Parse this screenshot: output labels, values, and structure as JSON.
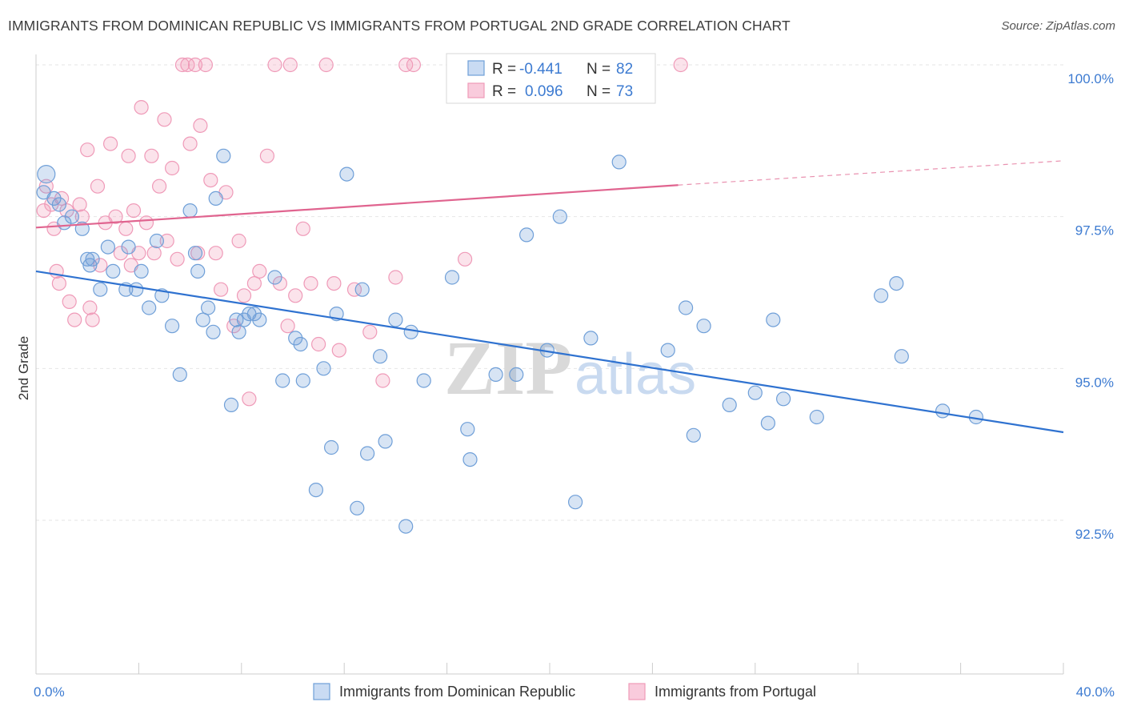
{
  "header": {
    "title": "IMMIGRANTS FROM DOMINICAN REPUBLIC VS IMMIGRANTS FROM PORTUGAL 2ND GRADE CORRELATION CHART",
    "source": "Source: ZipAtlas.com"
  },
  "watermark": {
    "zip": "ZIP",
    "atlas": "atlas"
  },
  "legend": {
    "blue": {
      "r_label": "R =",
      "r_value": "-0.441",
      "n_label": "N =",
      "n_value": "82"
    },
    "pink": {
      "r_label": "R =",
      "r_value": "0.096",
      "n_label": "N =",
      "n_value": "73"
    }
  },
  "chart_data": {
    "type": "scatter",
    "title": "IMMIGRANTS FROM DOMINICAN REPUBLIC VS IMMIGRANTS FROM PORTUGAL 2ND GRADE CORRELATION CHART",
    "xlabel": "",
    "ylabel": "2nd Grade",
    "xlim": [
      0,
      40
    ],
    "ylim": [
      90.0,
      100.5
    ],
    "x_tick_labels": [
      "0.0%",
      "40.0%"
    ],
    "y_tick_labels": [
      "100.0%",
      "97.5%",
      "95.0%",
      "92.5%"
    ],
    "y_tick_values": [
      100.0,
      97.5,
      95.0,
      92.5
    ],
    "grid": true,
    "legend_position": "top-center",
    "colors": {
      "blue": "#6f9fd8",
      "pink": "#ef9ab8",
      "blue_line": "#2f72d0",
      "pink_line": "#e0648f"
    },
    "series": [
      {
        "name": "Immigrants from Dominican Republic",
        "color": "blue",
        "trend": {
          "x0": 0.0,
          "y0": 96.6,
          "x1": 40.0,
          "y1": 93.95
        },
        "points": [
          [
            0.4,
            98.2
          ],
          [
            0.7,
            97.8
          ],
          [
            0.9,
            97.7
          ],
          [
            1.4,
            97.5
          ],
          [
            1.8,
            97.3
          ],
          [
            2.0,
            96.8
          ],
          [
            2.2,
            96.8
          ],
          [
            2.5,
            96.3
          ],
          [
            2.8,
            97.0
          ],
          [
            3.0,
            96.6
          ],
          [
            3.5,
            96.3
          ],
          [
            3.6,
            97.0
          ],
          [
            3.9,
            96.3
          ],
          [
            4.1,
            96.6
          ],
          [
            4.4,
            96.0
          ],
          [
            4.7,
            97.1
          ],
          [
            4.9,
            96.2
          ],
          [
            5.3,
            95.7
          ],
          [
            5.6,
            94.9
          ],
          [
            6.0,
            97.6
          ],
          [
            6.2,
            96.9
          ],
          [
            6.3,
            96.6
          ],
          [
            6.5,
            95.8
          ],
          [
            6.7,
            96.0
          ],
          [
            6.9,
            95.6
          ],
          [
            7.0,
            97.8
          ],
          [
            7.3,
            98.5
          ],
          [
            7.6,
            94.4
          ],
          [
            7.8,
            95.8
          ],
          [
            7.9,
            95.6
          ],
          [
            8.1,
            95.8
          ],
          [
            8.3,
            95.9
          ],
          [
            8.5,
            95.9
          ],
          [
            8.7,
            95.8
          ],
          [
            9.3,
            96.5
          ],
          [
            9.6,
            94.8
          ],
          [
            10.1,
            95.5
          ],
          [
            10.3,
            95.4
          ],
          [
            10.4,
            94.8
          ],
          [
            10.9,
            93.0
          ],
          [
            11.2,
            95.0
          ],
          [
            11.5,
            93.7
          ],
          [
            11.7,
            95.9
          ],
          [
            12.1,
            98.2
          ],
          [
            12.5,
            92.7
          ],
          [
            12.7,
            96.3
          ],
          [
            12.9,
            93.6
          ],
          [
            13.4,
            95.2
          ],
          [
            13.6,
            93.8
          ],
          [
            14.0,
            95.8
          ],
          [
            14.4,
            92.4
          ],
          [
            14.6,
            95.6
          ],
          [
            15.1,
            94.8
          ],
          [
            16.2,
            96.5
          ],
          [
            16.8,
            94.0
          ],
          [
            16.9,
            93.5
          ],
          [
            17.9,
            94.9
          ],
          [
            18.7,
            94.9
          ],
          [
            19.1,
            97.2
          ],
          [
            19.9,
            95.3
          ],
          [
            20.4,
            97.5
          ],
          [
            21.0,
            92.8
          ],
          [
            21.6,
            95.5
          ],
          [
            22.7,
            98.4
          ],
          [
            24.6,
            95.3
          ],
          [
            25.3,
            96.0
          ],
          [
            25.6,
            93.9
          ],
          [
            26.0,
            95.7
          ],
          [
            27.0,
            94.4
          ],
          [
            28.0,
            94.6
          ],
          [
            28.5,
            94.1
          ],
          [
            28.7,
            95.8
          ],
          [
            29.1,
            94.5
          ],
          [
            30.4,
            94.2
          ],
          [
            32.9,
            96.2
          ],
          [
            33.5,
            96.4
          ],
          [
            33.7,
            95.2
          ],
          [
            35.3,
            94.3
          ],
          [
            36.6,
            94.2
          ],
          [
            0.3,
            97.9
          ],
          [
            1.1,
            97.4
          ],
          [
            2.1,
            96.7
          ]
        ]
      },
      {
        "name": "Immigrants from Portugal",
        "color": "pink",
        "trend": {
          "x0": 0.0,
          "y0": 97.32,
          "x1": 25.0,
          "y1": 98.02,
          "dash_to_x": 40.0,
          "dash_to_y": 98.42
        },
        "points": [
          [
            0.3,
            97.6
          ],
          [
            0.4,
            98.0
          ],
          [
            0.6,
            97.7
          ],
          [
            0.7,
            97.3
          ],
          [
            0.8,
            96.6
          ],
          [
            0.9,
            96.4
          ],
          [
            1.0,
            97.8
          ],
          [
            1.2,
            97.6
          ],
          [
            1.3,
            96.1
          ],
          [
            1.5,
            95.8
          ],
          [
            1.7,
            97.7
          ],
          [
            1.8,
            97.5
          ],
          [
            2.0,
            98.6
          ],
          [
            2.1,
            96.0
          ],
          [
            2.2,
            95.8
          ],
          [
            2.4,
            98.0
          ],
          [
            2.5,
            96.7
          ],
          [
            2.7,
            97.4
          ],
          [
            2.9,
            98.7
          ],
          [
            3.1,
            97.5
          ],
          [
            3.3,
            96.9
          ],
          [
            3.5,
            97.3
          ],
          [
            3.6,
            98.5
          ],
          [
            3.7,
            96.7
          ],
          [
            3.8,
            97.6
          ],
          [
            4.0,
            96.9
          ],
          [
            4.1,
            99.3
          ],
          [
            4.3,
            97.4
          ],
          [
            4.5,
            98.5
          ],
          [
            4.6,
            96.9
          ],
          [
            4.8,
            98.0
          ],
          [
            5.0,
            99.1
          ],
          [
            5.1,
            97.1
          ],
          [
            5.3,
            98.3
          ],
          [
            5.5,
            96.8
          ],
          [
            5.7,
            100.0
          ],
          [
            5.9,
            100.0
          ],
          [
            6.0,
            98.7
          ],
          [
            6.2,
            100.0
          ],
          [
            6.3,
            96.9
          ],
          [
            6.4,
            99.0
          ],
          [
            6.6,
            100.0
          ],
          [
            6.8,
            98.1
          ],
          [
            7.0,
            96.9
          ],
          [
            7.2,
            96.3
          ],
          [
            7.4,
            97.9
          ],
          [
            7.7,
            95.7
          ],
          [
            7.9,
            97.1
          ],
          [
            8.1,
            96.2
          ],
          [
            8.3,
            94.5
          ],
          [
            8.5,
            96.4
          ],
          [
            8.7,
            96.6
          ],
          [
            9.0,
            98.5
          ],
          [
            9.3,
            100.0
          ],
          [
            9.5,
            96.4
          ],
          [
            9.8,
            95.7
          ],
          [
            10.1,
            96.2
          ],
          [
            10.4,
            97.3
          ],
          [
            10.7,
            96.4
          ],
          [
            11.0,
            95.4
          ],
          [
            11.3,
            100.0
          ],
          [
            11.6,
            96.4
          ],
          [
            11.8,
            95.3
          ],
          [
            12.4,
            96.3
          ],
          [
            13.0,
            95.6
          ],
          [
            13.5,
            94.8
          ],
          [
            14.0,
            96.5
          ],
          [
            14.4,
            100.0
          ],
          [
            14.7,
            100.0
          ],
          [
            16.7,
            96.8
          ],
          [
            17.2,
            100.0
          ],
          [
            25.1,
            100.0
          ],
          [
            9.9,
            100.0
          ]
        ]
      }
    ]
  },
  "bottom_legend": {
    "blue_label": "Immigrants from Dominican Republic",
    "pink_label": "Immigrants from Portugal"
  }
}
